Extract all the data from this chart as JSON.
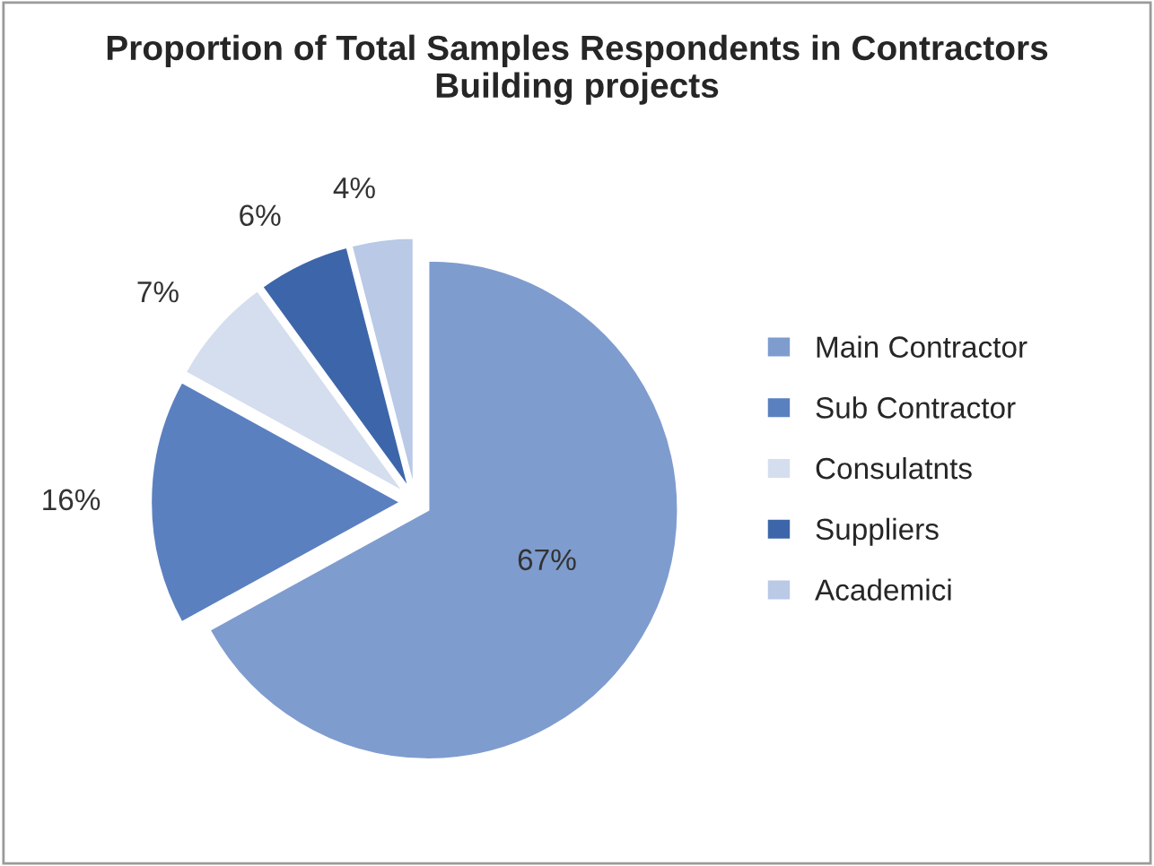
{
  "chart_data": {
    "type": "pie",
    "title": "Proportion of Total Samples Respondents in Contractors\nBuilding projects",
    "categories": [
      "Main Contractor",
      "Sub Contractor",
      "Consulatnts",
      "Suppliers",
      "Academici"
    ],
    "values": [
      67,
      16,
      7,
      6,
      4
    ],
    "value_labels": [
      "67%",
      "16%",
      "7%",
      "6%",
      "4%"
    ],
    "colors": [
      "#7f9ccf",
      "#5b80c0",
      "#d5deee",
      "#3d66aa",
      "#b9c9e6"
    ],
    "legend": "right"
  }
}
